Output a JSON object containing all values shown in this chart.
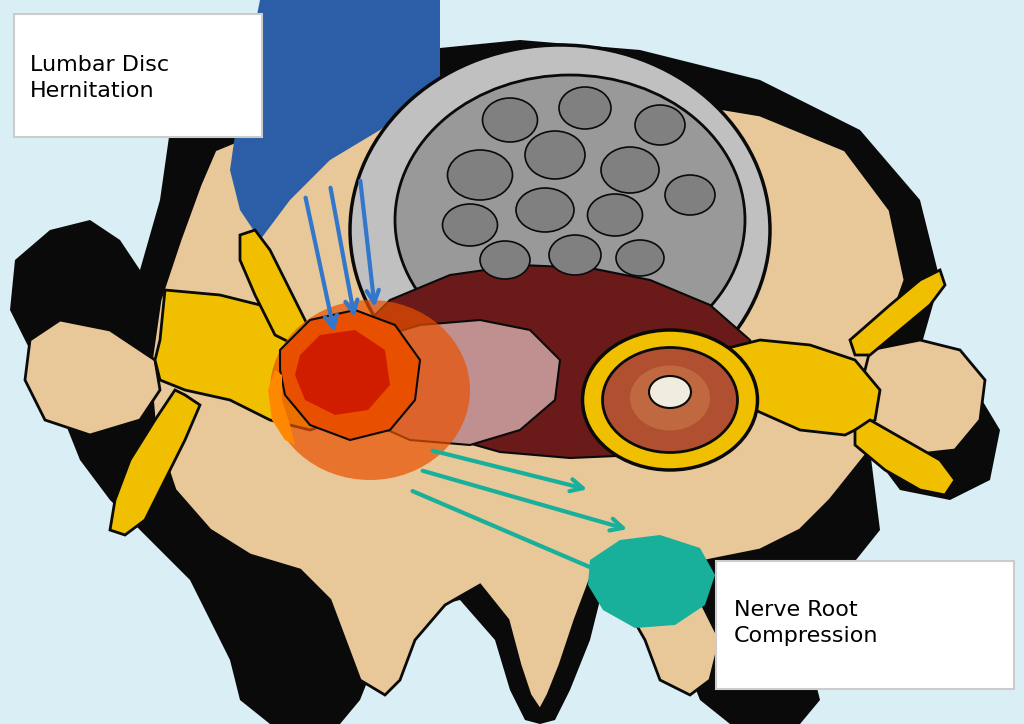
{
  "bg_color": "#d9eef5",
  "black_color": "#0a0a0a",
  "bone_color": "#e8c898",
  "disc_light_gray": "#c0c0c0",
  "disc_mid_gray": "#999999",
  "disc_dark_band": "#6b1a1a",
  "nerve_yellow": "#f0c000",
  "nerve_yellow_dark": "#c8a000",
  "herniation_red": "#cc1500",
  "herniation_orange": "#e85000",
  "herniation_peach": "#e09080",
  "blue_arrow_color": "#3377cc",
  "teal_color": "#18b09a",
  "canal_brown": "#b05030",
  "canal_white": "#f0ede0",
  "label1_text": "Lumbar Disc\nHernitation",
  "label2_text": "Nerve Root\nCompression",
  "label_fontsize": 16,
  "blue_shape_color": "#2b5ea7"
}
